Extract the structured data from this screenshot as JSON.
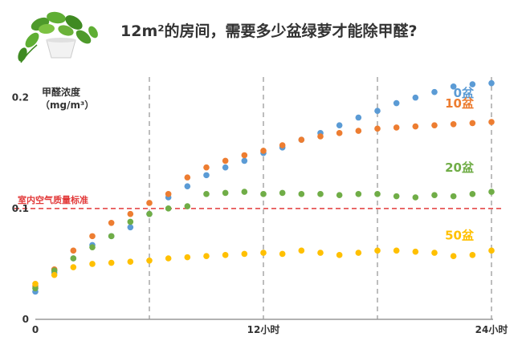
{
  "page": {
    "title": "12m²的房间，需要多少盆绿萝才能除甲醛?"
  },
  "chart_data": {
    "type": "scatter",
    "title": "12m²的房间，需要多少盆绿萝才能除甲醛?",
    "ylabel_line1": "甲醛浓度",
    "ylabel_line2": "（mg/m³）",
    "xlim": [
      0,
      24
    ],
    "ylim": [
      0,
      0.22
    ],
    "xticks": [
      {
        "value": 0,
        "label": "0"
      },
      {
        "value": 12,
        "label": "12小时"
      },
      {
        "value": 24,
        "label": "24小时"
      }
    ],
    "yticks": [
      {
        "value": 0,
        "label": "0"
      },
      {
        "value": 0.1,
        "label": "0.1"
      },
      {
        "value": 0.2,
        "label": "0.2"
      }
    ],
    "vlines": [
      6,
      12,
      18,
      24
    ],
    "grid": false,
    "reference_line": {
      "value": 0.1,
      "label": "室内空气质量标准",
      "color": "#e23a3a"
    },
    "series": [
      {
        "name": "0盆",
        "color": "#5b9bd5",
        "label_color": "#5b9bd5",
        "x": [
          0,
          1,
          2,
          3,
          4,
          5,
          6,
          7,
          8,
          9,
          10,
          11,
          12,
          13,
          14,
          15,
          16,
          17,
          18,
          19,
          20,
          21,
          22,
          23,
          24
        ],
        "y": [
          0.025,
          0.042,
          0.055,
          0.067,
          0.075,
          0.083,
          0.095,
          0.11,
          0.12,
          0.13,
          0.137,
          0.143,
          0.15,
          0.155,
          0.162,
          0.168,
          0.175,
          0.182,
          0.188,
          0.195,
          0.2,
          0.205,
          0.21,
          0.212,
          0.213
        ]
      },
      {
        "name": "10盆",
        "color": "#ed7d31",
        "label_color": "#ed7d31",
        "x": [
          0,
          1,
          2,
          3,
          4,
          5,
          6,
          7,
          8,
          9,
          10,
          11,
          12,
          13,
          14,
          15,
          16,
          17,
          18,
          19,
          20,
          21,
          22,
          23,
          24
        ],
        "y": [
          0.03,
          0.045,
          0.062,
          0.075,
          0.087,
          0.095,
          0.105,
          0.113,
          0.128,
          0.137,
          0.143,
          0.148,
          0.152,
          0.157,
          0.162,
          0.165,
          0.168,
          0.17,
          0.172,
          0.173,
          0.174,
          0.175,
          0.176,
          0.177,
          0.178
        ]
      },
      {
        "name": "20盆",
        "color": "#70ad47",
        "label_color": "#70ad47",
        "x": [
          0,
          1,
          2,
          3,
          4,
          5,
          6,
          7,
          8,
          9,
          10,
          11,
          12,
          13,
          14,
          15,
          16,
          17,
          18,
          19,
          20,
          21,
          22,
          23,
          24
        ],
        "y": [
          0.028,
          0.044,
          0.055,
          0.065,
          0.075,
          0.088,
          0.095,
          0.1,
          0.102,
          0.113,
          0.114,
          0.115,
          0.113,
          0.114,
          0.113,
          0.113,
          0.112,
          0.113,
          0.113,
          0.111,
          0.11,
          0.112,
          0.111,
          0.113,
          0.115
        ]
      },
      {
        "name": "50盆",
        "color": "#ffc000",
        "label_color": "#ffc000",
        "x": [
          0,
          1,
          2,
          3,
          4,
          5,
          6,
          7,
          8,
          9,
          10,
          11,
          12,
          13,
          14,
          15,
          16,
          17,
          18,
          19,
          20,
          21,
          22,
          23,
          24
        ],
        "y": [
          0.032,
          0.04,
          0.047,
          0.05,
          0.051,
          0.052,
          0.053,
          0.055,
          0.056,
          0.057,
          0.058,
          0.059,
          0.06,
          0.059,
          0.062,
          0.06,
          0.058,
          0.06,
          0.062,
          0.062,
          0.061,
          0.06,
          0.057,
          0.058,
          0.062
        ]
      }
    ]
  }
}
